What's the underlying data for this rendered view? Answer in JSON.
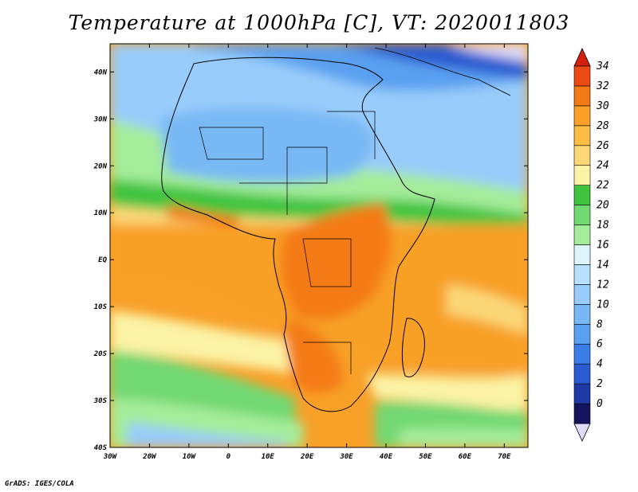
{
  "title": "Temperature at 1000hPa [C], VT: 2020011803",
  "credit": "GrADS: IGES/COLA",
  "map": {
    "lon_range": [
      -30,
      76
    ],
    "lat_range": [
      -40,
      46
    ],
    "x_ticks": [
      {
        "lon": -30,
        "label": "30W"
      },
      {
        "lon": -20,
        "label": "20W"
      },
      {
        "lon": -10,
        "label": "10W"
      },
      {
        "lon": 0,
        "label": "0"
      },
      {
        "lon": 10,
        "label": "10E"
      },
      {
        "lon": 20,
        "label": "20E"
      },
      {
        "lon": 30,
        "label": "30E"
      },
      {
        "lon": 40,
        "label": "40E"
      },
      {
        "lon": 50,
        "label": "50E"
      },
      {
        "lon": 60,
        "label": "60E"
      },
      {
        "lon": 70,
        "label": "70E"
      }
    ],
    "y_ticks": [
      {
        "lat": 40,
        "label": "40N"
      },
      {
        "lat": 30,
        "label": "30N"
      },
      {
        "lat": 20,
        "label": "20N"
      },
      {
        "lat": 10,
        "label": "10N"
      },
      {
        "lat": 0,
        "label": "EQ"
      },
      {
        "lat": -10,
        "label": "10S"
      },
      {
        "lat": -20,
        "label": "20S"
      },
      {
        "lat": -30,
        "label": "30S"
      },
      {
        "lat": -40,
        "label": "40S"
      }
    ]
  },
  "colorbar": {
    "levels": [
      {
        "label": "0",
        "color": "#14145c"
      },
      {
        "label": "2",
        "color": "#1f3aa6"
      },
      {
        "label": "4",
        "color": "#2a5bd0"
      },
      {
        "label": "6",
        "color": "#3a7de6"
      },
      {
        "label": "8",
        "color": "#5aa0f0"
      },
      {
        "label": "10",
        "color": "#78b8f5"
      },
      {
        "label": "12",
        "color": "#98ccfa"
      },
      {
        "label": "14",
        "color": "#b8e0fc"
      },
      {
        "label": "16",
        "color": "#dcf4fa"
      },
      {
        "label": "18",
        "color": "#a4ec9a"
      },
      {
        "label": "20",
        "color": "#72d872"
      },
      {
        "label": "22",
        "color": "#40c440"
      },
      {
        "label": "24",
        "color": "#fbf3a6"
      },
      {
        "label": "26",
        "color": "#fbd777"
      },
      {
        "label": "28",
        "color": "#fbbd46"
      },
      {
        "label": "30",
        "color": "#f8a028"
      },
      {
        "label": "32",
        "color": "#f47a17"
      },
      {
        "label": "34",
        "color": "#ec4a14"
      }
    ],
    "low_color": "#e0dcfa",
    "high_color": "#d4200c"
  }
}
